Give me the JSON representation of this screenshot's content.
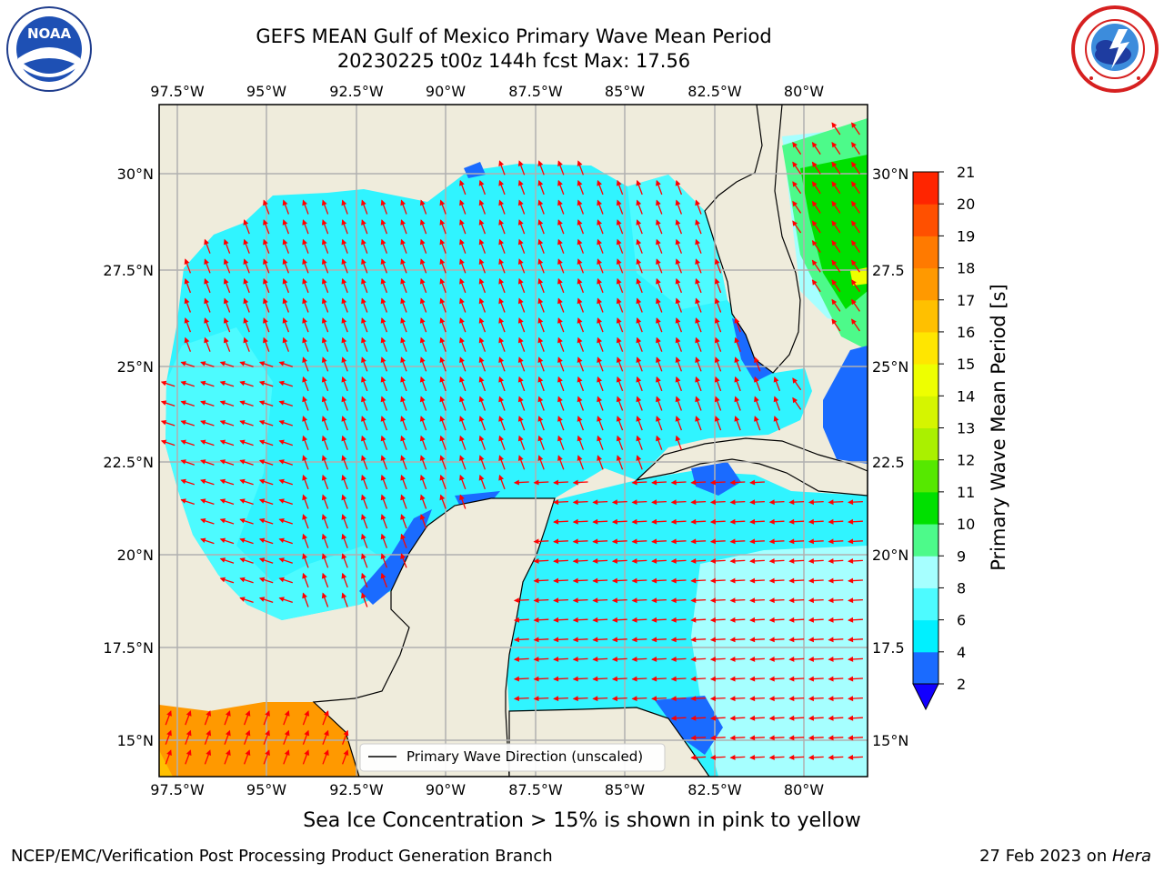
{
  "header": {
    "title_line1": "GEFS MEAN Gulf of Mexico Primary Wave Mean Period",
    "title_line2": "20230225 t00z 144h fcst   Max: 17.56"
  },
  "logos": {
    "left": {
      "name": "noaa-logo",
      "text": "NOAA"
    },
    "right": {
      "name": "nws-logo"
    }
  },
  "map": {
    "lon_labels": [
      "97.5°W",
      "95°W",
      "92.5°W",
      "90°W",
      "87.5°W",
      "85°W",
      "82.5°W",
      "80°W"
    ],
    "lat_labels_left": [
      "30°N",
      "27.5°N",
      "25°N",
      "22.5°N",
      "20°N",
      "17.5°N",
      "15°N"
    ],
    "lat_labels_right": [
      "30°N",
      "27.5",
      "25°N",
      "22.5",
      "20°N",
      "17.5",
      "15°N"
    ],
    "legend_label": "Primary Wave Direction (unscaled)",
    "colors": {
      "land": "#EFECDC",
      "grid": "#B0B0B0",
      "arrow": "#FF0000",
      "coast": "#000000"
    }
  },
  "colorbar": {
    "label": "Primary Wave Mean Period [s]",
    "ticks": [
      "2",
      "4",
      "6",
      "8",
      "9",
      "10",
      "11",
      "12",
      "13",
      "14",
      "15",
      "16",
      "17",
      "18",
      "19",
      "20",
      "21"
    ],
    "colors": [
      "#1A6BFF",
      "#00F0FF",
      "#4DFBFF",
      "#A6FFFF",
      "#4DFA8A",
      "#00E000",
      "#56E800",
      "#AAF000",
      "#D5F500",
      "#EEFF00",
      "#FFE600",
      "#FFC000",
      "#FF9900",
      "#FF7A00",
      "#FF5000",
      "#FF2500"
    ],
    "extend_color": "#1200FF"
  },
  "caption": "Sea Ice Concentration > 15% is shown in pink to yellow",
  "footer": {
    "left": "NCEP/EMC/Verification Post Processing Product Generation Branch",
    "right_prefix": "27 Feb 2023 on ",
    "right_italic": "Hera"
  }
}
